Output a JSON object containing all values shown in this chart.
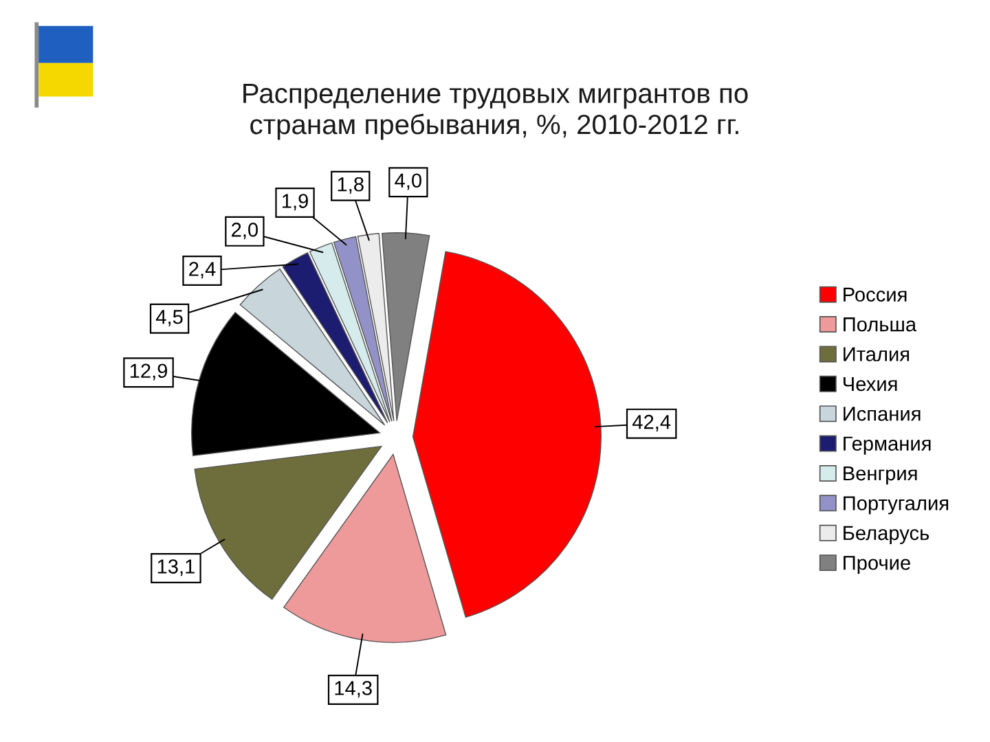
{
  "chart_data": {
    "type": "pie",
    "title": "Распределение трудовых мигрантов по\nстранам пребывания, %, 2010-2012 гг.",
    "categories": [
      "Россия",
      "Польша",
      "Италия",
      "Чехия",
      "Испания",
      "Германия",
      "Венгрия",
      "Португалия",
      "Беларусь",
      "Прочие"
    ],
    "values": [
      42.4,
      14.3,
      13.1,
      12.9,
      4.5,
      2.4,
      2.0,
      1.9,
      1.8,
      4.0
    ],
    "value_labels": [
      "42,4",
      "14,3",
      "13,1",
      "12,9",
      "4,5",
      "2,4",
      "2,0",
      "1,9",
      "1,8",
      "4,0"
    ],
    "colors": [
      "#ff0000",
      "#ee9a9a",
      "#6e6e3c",
      "#000000",
      "#c8d6dc",
      "#1c1c70",
      "#d6ecec",
      "#9292c8",
      "#ececec",
      "#808080"
    ],
    "legend": "right"
  }
}
